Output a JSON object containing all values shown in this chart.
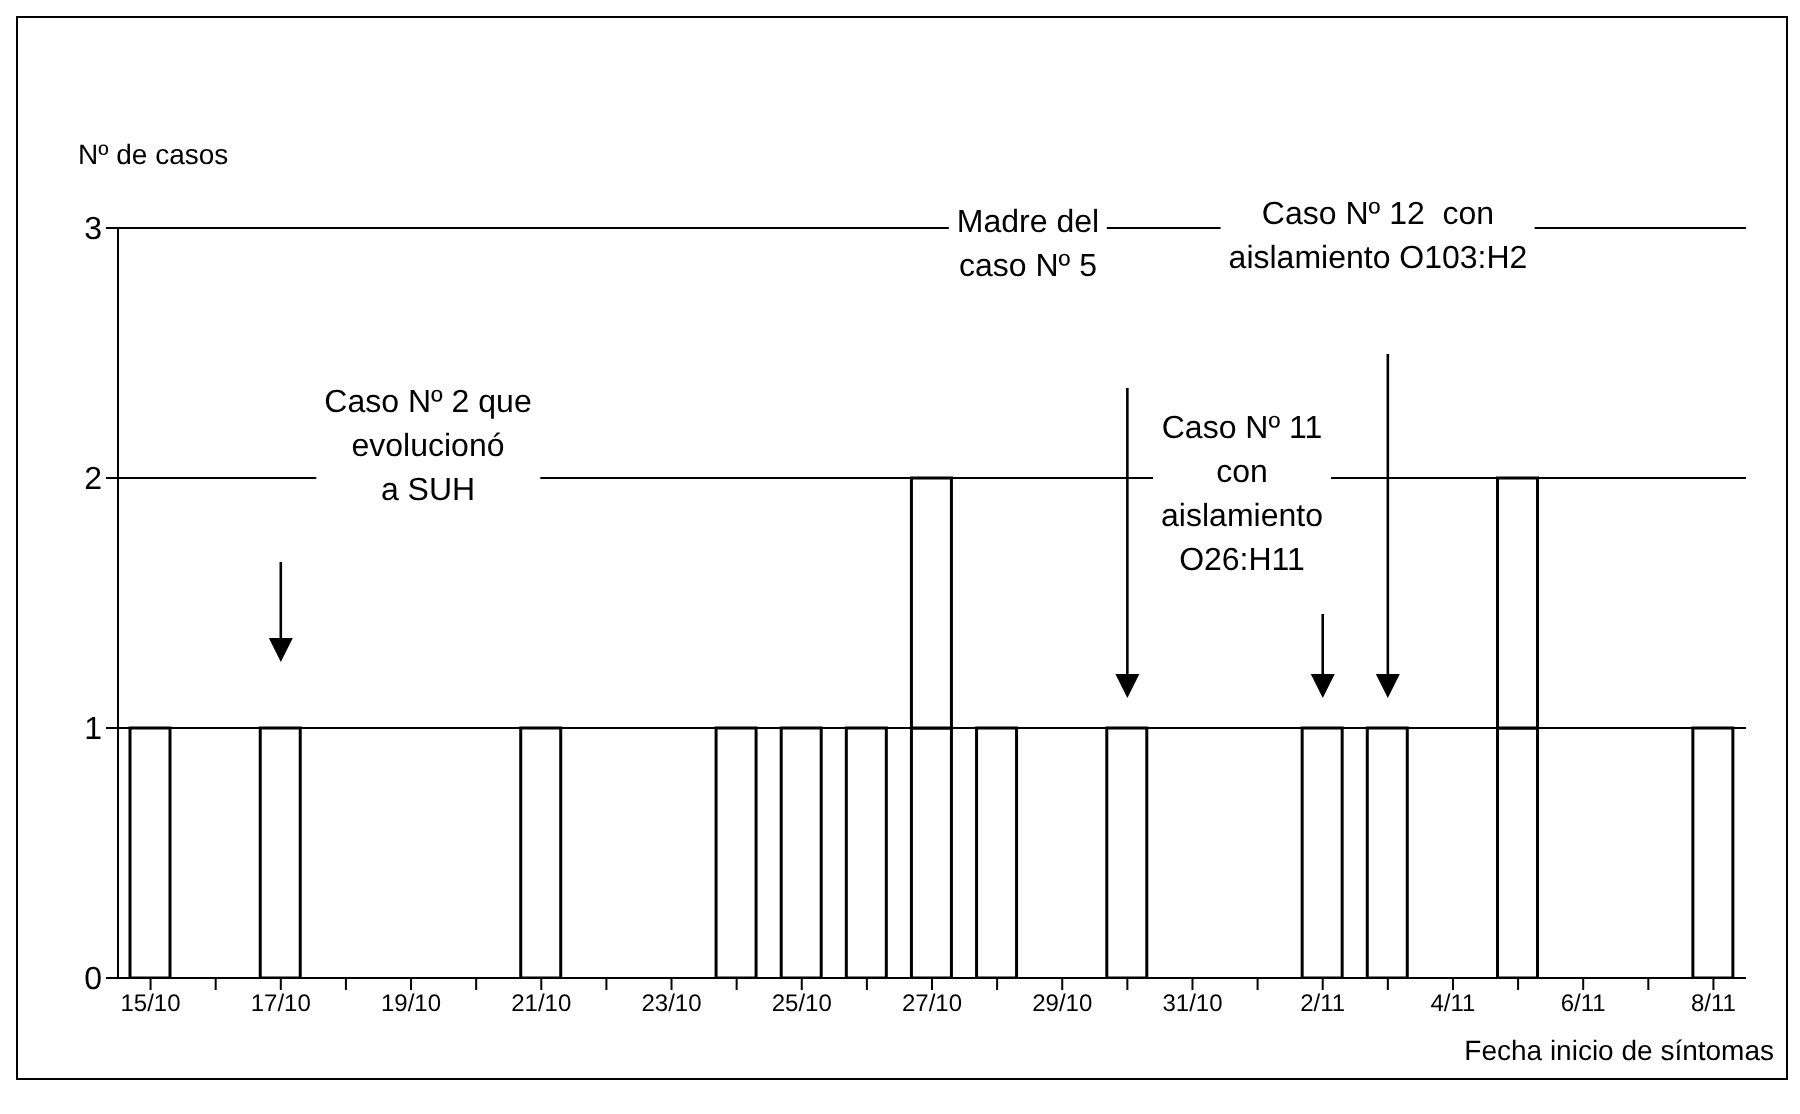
{
  "chart_data": {
    "type": "bar",
    "stacked": true,
    "ylabel": "Nº de casos",
    "xlabel": "Fecha inicio de síntomas",
    "categories": [
      "15/10",
      null,
      "17/10",
      null,
      "19/10",
      null,
      "21/10",
      null,
      "23/10",
      null,
      "25/10",
      null,
      "27/10",
      null,
      "29/10",
      null,
      "31/10",
      null,
      "2/11",
      null,
      "4/11",
      null,
      "6/11",
      null,
      "8/11"
    ],
    "series": [
      {
        "color": "#ffffff",
        "values": [
          1,
          null,
          1,
          null,
          null,
          null,
          1,
          null,
          null,
          1,
          1,
          1,
          1,
          1,
          null,
          1,
          null,
          null,
          1,
          1,
          null,
          1,
          0,
          null,
          1
        ]
      },
      {
        "color": "#ffffff",
        "values": [
          null,
          null,
          null,
          null,
          null,
          null,
          null,
          null,
          null,
          null,
          null,
          null,
          1,
          null,
          null,
          null,
          null,
          null,
          null,
          null,
          null,
          1,
          null,
          null,
          null
        ]
      }
    ],
    "ylim": [
      0,
      3
    ],
    "yticks": [
      0,
      1,
      2,
      3
    ],
    "grid": "y",
    "legend": false,
    "annotations": [
      "Caso Nº 2 que\nevolucionó\na SUH",
      "Madre del\ncaso Nº 5",
      "Caso Nº 11\ncon\naislamiento\nO26:H11",
      "Caso Nº 12  con\naislamiento O103:H2"
    ]
  }
}
